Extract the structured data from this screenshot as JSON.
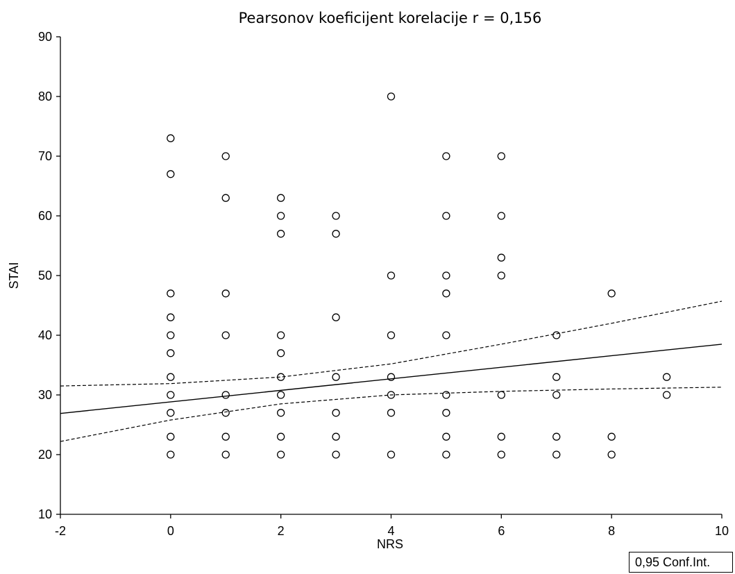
{
  "chart_data": {
    "type": "scatter",
    "title": "Pearsonov koeficijent korelacije r = 0,156",
    "xlabel": "NRS",
    "ylabel": "STAI",
    "xlim": [
      -2,
      10
    ],
    "ylim": [
      10,
      90
    ],
    "xticks": [
      "-2",
      "0",
      "2",
      "4",
      "6",
      "8",
      "10"
    ],
    "yticks": [
      "10",
      "20",
      "30",
      "40",
      "50",
      "60",
      "70",
      "80",
      "90"
    ],
    "grid": false,
    "legend": {
      "label": "0,95 Conf.Int.",
      "placement": "bottom-right"
    },
    "points": [
      [
        0,
        73
      ],
      [
        0,
        67
      ],
      [
        0,
        47
      ],
      [
        0,
        43
      ],
      [
        0,
        40
      ],
      [
        0,
        37
      ],
      [
        0,
        33
      ],
      [
        0,
        30
      ],
      [
        0,
        27
      ],
      [
        0,
        23
      ],
      [
        0,
        20
      ],
      [
        1,
        70
      ],
      [
        1,
        63
      ],
      [
        1,
        47
      ],
      [
        1,
        40
      ],
      [
        1,
        30
      ],
      [
        1,
        27
      ],
      [
        1,
        23
      ],
      [
        1,
        20
      ],
      [
        2,
        63
      ],
      [
        2,
        60
      ],
      [
        2,
        57
      ],
      [
        2,
        40
      ],
      [
        2,
        37
      ],
      [
        2,
        33
      ],
      [
        2,
        30
      ],
      [
        2,
        27
      ],
      [
        2,
        23
      ],
      [
        2,
        20
      ],
      [
        3,
        60
      ],
      [
        3,
        57
      ],
      [
        3,
        43
      ],
      [
        3,
        33
      ],
      [
        3,
        27
      ],
      [
        3,
        23
      ],
      [
        3,
        20
      ],
      [
        4,
        80
      ],
      [
        4,
        50
      ],
      [
        4,
        40
      ],
      [
        4,
        33
      ],
      [
        4,
        30
      ],
      [
        4,
        27
      ],
      [
        4,
        20
      ],
      [
        5,
        70
      ],
      [
        5,
        60
      ],
      [
        5,
        50
      ],
      [
        5,
        47
      ],
      [
        5,
        40
      ],
      [
        5,
        30
      ],
      [
        5,
        27
      ],
      [
        5,
        23
      ],
      [
        5,
        20
      ],
      [
        6,
        70
      ],
      [
        6,
        60
      ],
      [
        6,
        53
      ],
      [
        6,
        50
      ],
      [
        6,
        30
      ],
      [
        6,
        23
      ],
      [
        6,
        20
      ],
      [
        7,
        40
      ],
      [
        7,
        33
      ],
      [
        7,
        30
      ],
      [
        7,
        23
      ],
      [
        7,
        20
      ],
      [
        8,
        47
      ],
      [
        8,
        23
      ],
      [
        8,
        20
      ],
      [
        9,
        33
      ],
      [
        9,
        30
      ]
    ],
    "regression": {
      "x": [
        -2,
        10
      ],
      "y": [
        26.9,
        38.5
      ]
    },
    "conf_upper": {
      "x": [
        -2,
        0,
        2,
        4,
        6,
        8,
        10
      ],
      "y": [
        31.5,
        31.9,
        33.0,
        35.2,
        38.5,
        42.0,
        45.7
      ]
    },
    "conf_lower": {
      "x": [
        -2,
        0,
        2,
        4,
        6,
        8,
        10
      ],
      "y": [
        22.2,
        25.8,
        28.5,
        30.0,
        30.6,
        31.0,
        31.3
      ]
    }
  }
}
